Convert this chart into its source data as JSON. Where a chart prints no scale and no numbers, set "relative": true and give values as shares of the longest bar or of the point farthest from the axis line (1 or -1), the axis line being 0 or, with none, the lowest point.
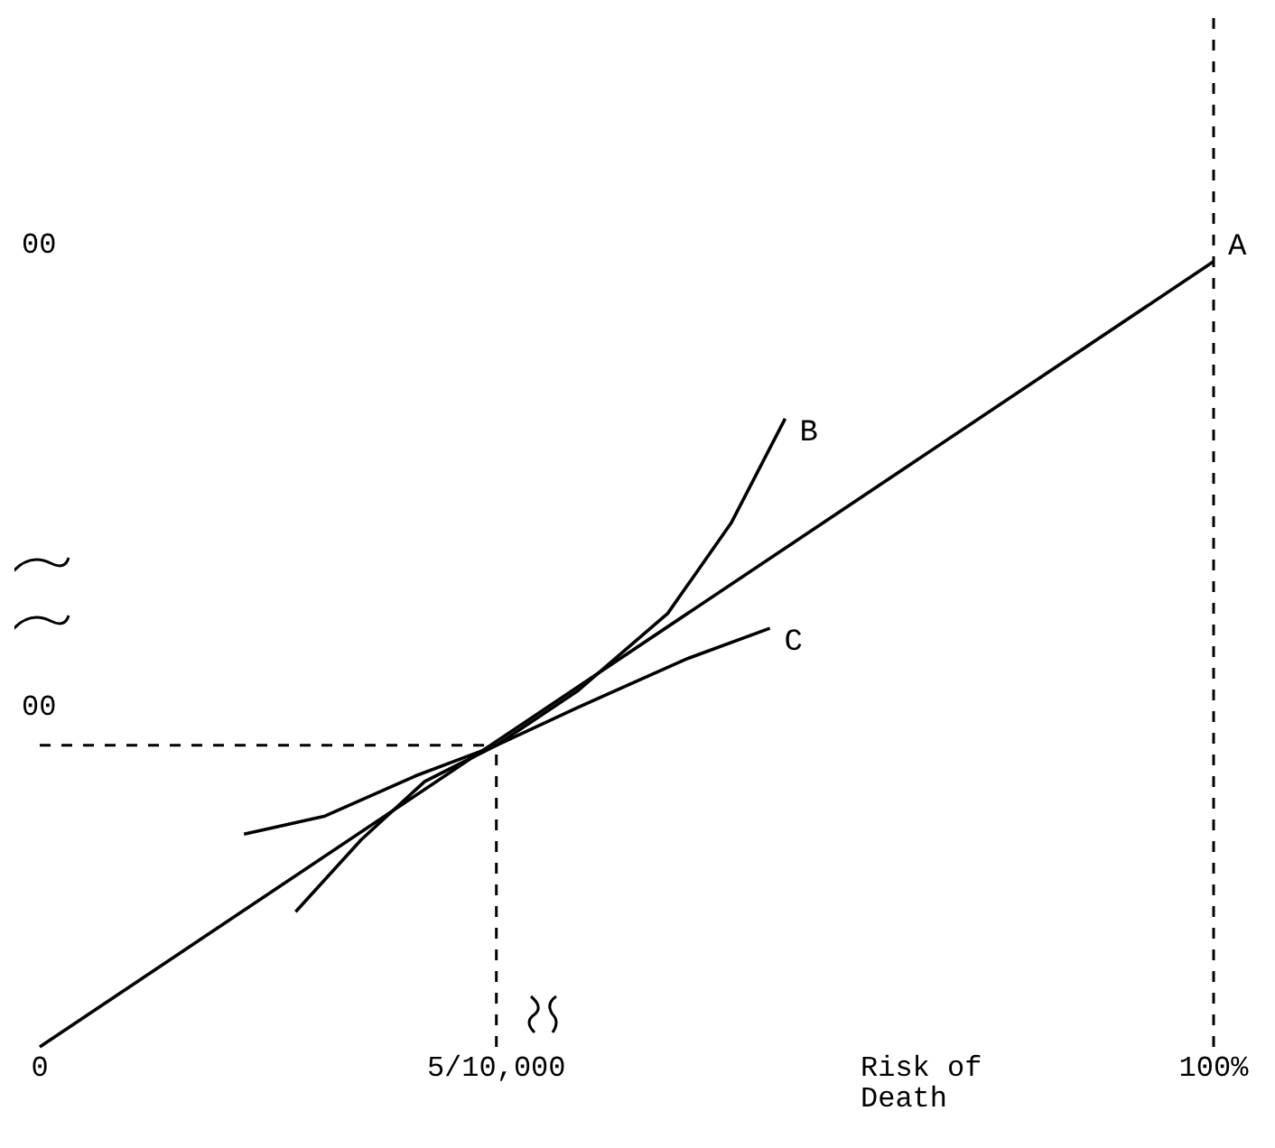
{
  "chart_data": {
    "type": "line",
    "relative": true,
    "xlabel": "Risk of Death",
    "xlim": [
      0,
      1
    ],
    "xticks": [
      {
        "value": 0,
        "label": "0"
      },
      {
        "value": 0.389,
        "label": "5/10,000"
      },
      {
        "value": 1,
        "label": "100%"
      }
    ],
    "tick_labels": "x",
    "grid": false,
    "marker": "none",
    "line_style": "solid",
    "series": [
      {
        "name": "A",
        "color": "#000000",
        "x": [
          0,
          1
        ],
        "values": [
          0,
          1
        ]
      },
      {
        "name": "B",
        "color": "#000000",
        "x": [
          0.218,
          0.274,
          0.328,
          0.389,
          0.458,
          0.535,
          0.589,
          0.635
        ],
        "values": [
          0.172,
          0.264,
          0.338,
          0.384,
          0.453,
          0.552,
          0.667,
          0.8
        ]
      },
      {
        "name": "C",
        "color": "#000000",
        "x": [
          0.174,
          0.243,
          0.32,
          0.389,
          0.458,
          0.551,
          0.622
        ],
        "values": [
          0.271,
          0.294,
          0.345,
          0.384,
          0.432,
          0.494,
          0.533
        ]
      }
    ],
    "ref_lines": [
      {
        "axis": "y",
        "value": 0.384,
        "line_style": "dashed"
      },
      {
        "axis": "x",
        "value": 0.389,
        "line_style": "dashed"
      },
      {
        "axis": "x",
        "value": 1,
        "line_style": "dashed"
      }
    ],
    "annotations": [
      "00",
      "00"
    ]
  }
}
